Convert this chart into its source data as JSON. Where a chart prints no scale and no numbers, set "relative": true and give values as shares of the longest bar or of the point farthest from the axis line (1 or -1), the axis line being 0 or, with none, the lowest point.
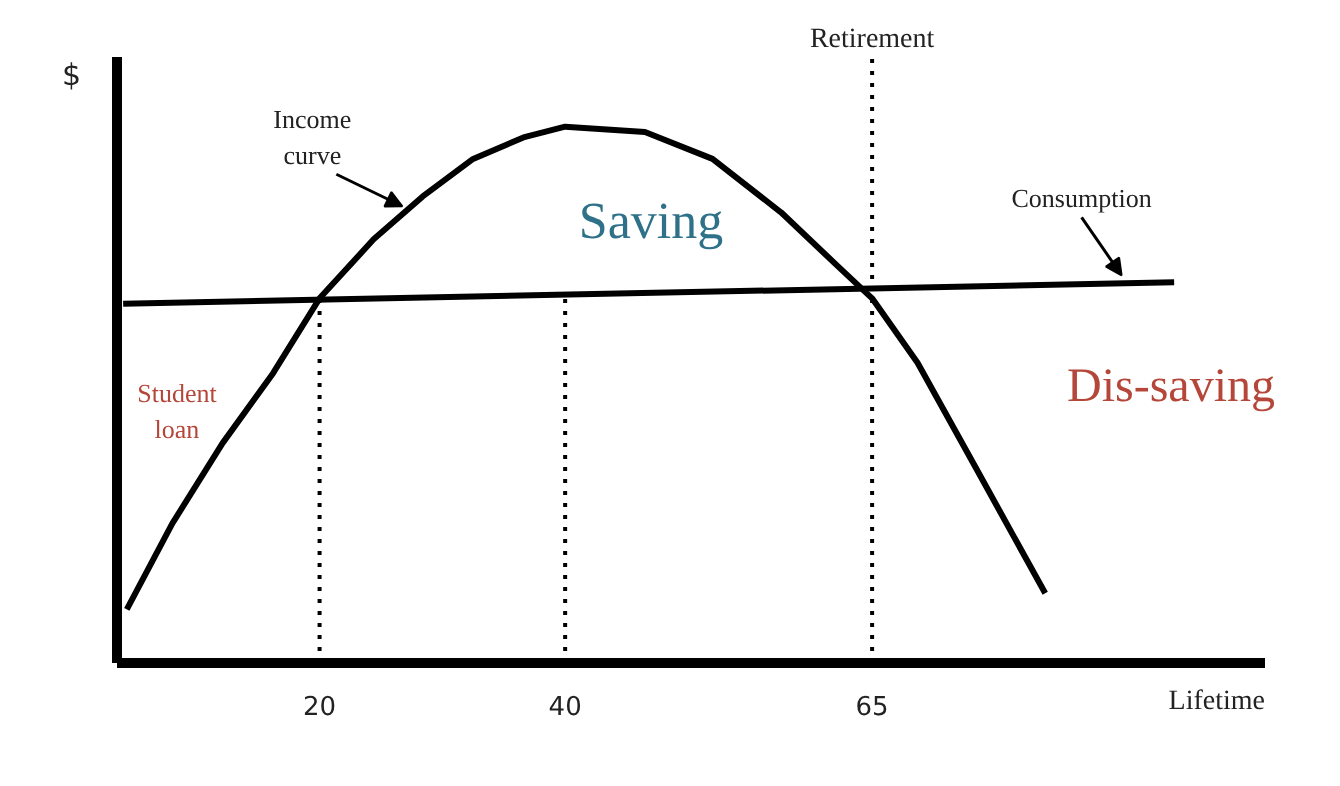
{
  "chart_data": {
    "type": "line",
    "relative": true,
    "xlabel": "Lifetime",
    "ylabel": "$",
    "xlim": [
      3.5,
      97
    ],
    "xticks": [
      20,
      40,
      65
    ],
    "grid": false,
    "legend": false,
    "marker": "none",
    "line_style": "solid",
    "series": [
      {
        "name": "Income curve",
        "color": "#000000",
        "x": [
          4.3,
          8,
          12.1,
          16.2,
          20,
          24.4,
          28.4,
          32.5,
          36.6,
          40,
          46.5,
          52,
          57.6,
          62.2,
          65,
          68.7,
          73.3,
          79.1
        ],
        "values": [
          0.1,
          0.26,
          0.41,
          0.54,
          0.68,
          0.79,
          0.87,
          0.94,
          0.98,
          1.0,
          0.99,
          0.94,
          0.84,
          0.74,
          0.68,
          0.56,
          0.37,
          0.13
        ]
      },
      {
        "name": "Consumption",
        "color": "#000000",
        "x": [
          4,
          89.6
        ],
        "values": [
          0.67,
          0.71
        ]
      }
    ],
    "ref_lines": [
      {
        "axis": "x",
        "value": 20,
        "label": null,
        "color": "#000000",
        "line_style": "dotted"
      },
      {
        "axis": "x",
        "value": 40,
        "label": null,
        "color": "#000000",
        "line_style": "dotted"
      },
      {
        "axis": "x",
        "value": 65,
        "label": "Retirement",
        "color": "#000000",
        "line_style": "dotted"
      }
    ],
    "annotations": [
      "Saving",
      "Student\nloan",
      "Dis-saving"
    ]
  }
}
